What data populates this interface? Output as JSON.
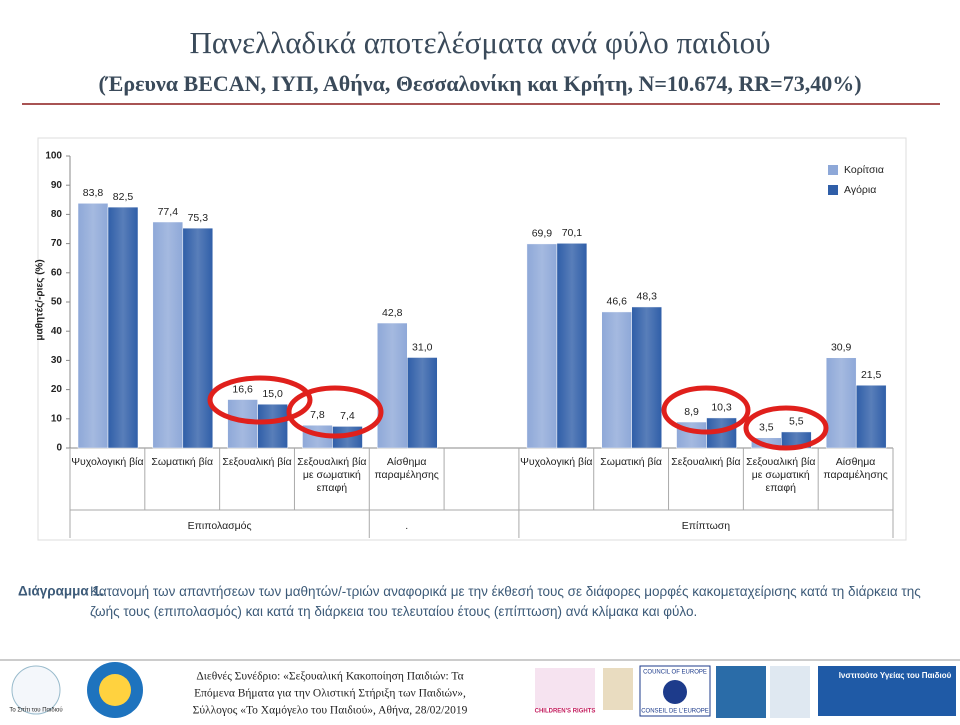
{
  "slide": {
    "title": "Πανελλαδικά αποτελέσματα ανά φύλο παιδιού",
    "subtitle": "(Έρευνα BECAN, ΙΥΠ, Αθήνα, Θεσσαλονίκη και Κρήτη, N=10.674, RR=73,40%)",
    "caption_label": "Διάγραμμα 1.",
    "caption_text": "Κατανομή των απαντήσεων των μαθητών/-τριών αναφορικά με την έκθεσή τους σε διάφορες μορφές κακομεταχείρισης κατά τη διάρκεια της ζωής τους (επιπολασμός) και κατά τη διάρκεια του τελευταίου έτους (επίπτωση) ανά κλίμακα και φύλο.",
    "footer_lines": [
      "Διεθνές Συνέδριο: «Σεξουαλική Κακοποίηση Παιδιών: Τα",
      "Επόμενα Βήματα για την Ολιστική Στήριξη των Παιδιών»,",
      "Σύλλογος «Το Χαμόγελο του Παιδιού», Αθήνα, 28/02/2019"
    ],
    "logos": [
      "Το Σπίτι του Παιδιού",
      "CHILDREN'S RIGHTS",
      "COUNCIL OF EUROPE",
      "CONSEIL DE L'EUROPE",
      "Ινστιτούτο Υγείας του Παιδιού"
    ]
  },
  "chart_data": {
    "type": "bar",
    "y_label": "μαθητές/-ριες (%)",
    "categories": [
      "Ψυχολογική βία",
      "Σωματική βία",
      "Σεξουαλική βία",
      "Σεξουαλική βία με σωματική επαφή",
      "Αίσθημα παραμέλησης",
      null,
      "Ψυχολογική βία",
      "Σωματική βία",
      "Σεξουαλική βία",
      "Σεξουαλική βία με σωματική επαφή",
      "Αίσθημα παραμέλησης"
    ],
    "groups": [
      "Επιπολασμός",
      ".",
      "Επίπτωση"
    ],
    "series": [
      {
        "name": "Κορίτσια",
        "color": "#8ea8d8",
        "values": [
          83.8,
          77.4,
          16.6,
          7.8,
          42.8,
          null,
          69.9,
          46.6,
          8.9,
          3.5,
          30.9
        ],
        "value_labels": [
          "83,8",
          "77,4",
          "16,6",
          "7,8",
          "42,8",
          null,
          "69,9",
          "46,6",
          "8,9",
          "3,5",
          "30,9"
        ]
      },
      {
        "name": "Αγόρια",
        "color": "#2f5ea8",
        "values": [
          82.5,
          75.3,
          15.0,
          7.4,
          31.0,
          null,
          70.1,
          48.3,
          10.3,
          5.5,
          21.5
        ],
        "value_labels": [
          "82,5",
          "75,3",
          "15,0",
          "7,4",
          "31,0",
          null,
          "70,1",
          "48,3",
          "10,3",
          "5,5",
          "21,5"
        ]
      }
    ],
    "ylim": [
      0,
      100
    ],
    "yticks": [
      0,
      10,
      20,
      30,
      40,
      50,
      60,
      70,
      80,
      90,
      100
    ],
    "legend": "top-right"
  }
}
